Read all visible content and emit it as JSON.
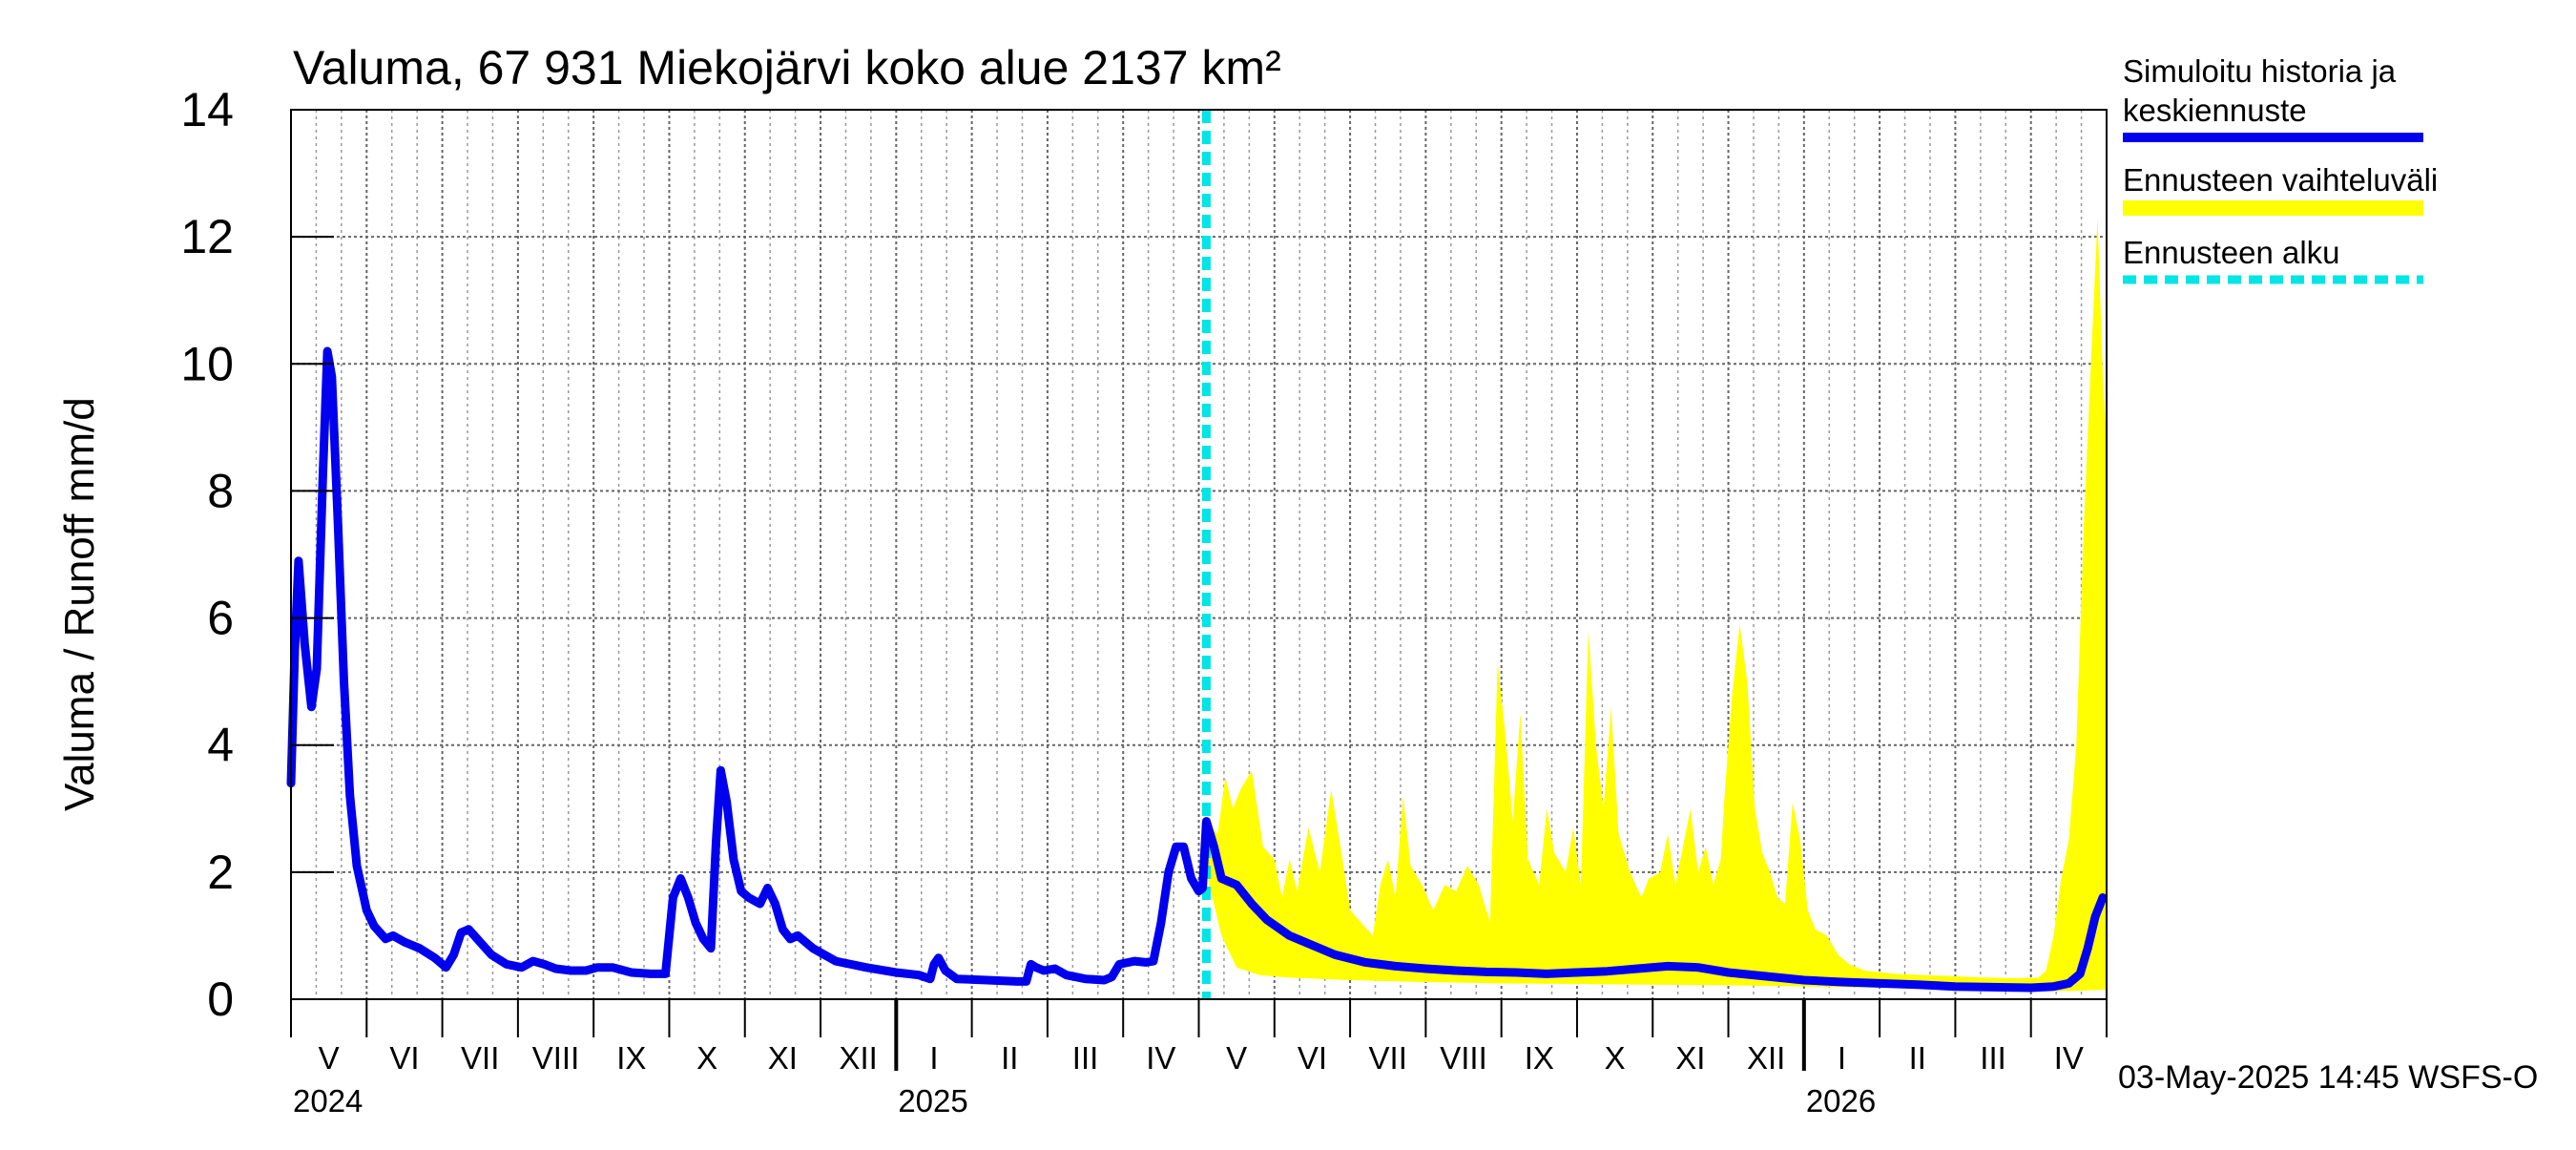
{
  "chart_data": {
    "type": "line",
    "title": "Valuma, 67 931 Miekojärvi koko alue 2137 km²",
    "ylabel": "Valuma / Runoff    mm/d",
    "ylim": [
      0,
      14
    ],
    "yticks": [
      0,
      2,
      4,
      6,
      8,
      10,
      12,
      14
    ],
    "xlim_months": [
      0,
      24
    ],
    "month_labels": [
      "V",
      "VI",
      "VII",
      "VIII",
      "IX",
      "X",
      "XI",
      "XII",
      "I",
      "II",
      "III",
      "IV",
      "V",
      "VI",
      "VII",
      "VIII",
      "IX",
      "X",
      "XI",
      "XII",
      "I",
      "II",
      "III",
      "IV"
    ],
    "year_labels": [
      {
        "label": "2024",
        "month": 0
      },
      {
        "label": "2025",
        "month": 8
      },
      {
        "label": "2026",
        "month": 20
      }
    ],
    "forecast_start_month": 12.1,
    "footer": "03-May-2025 14:45 WSFS-O",
    "legend": {
      "placement": "right",
      "items": [
        {
          "label_line1": "Simuloitu historia ja",
          "label_line2": "keskiennuste",
          "color": "#0000ee",
          "style": "line"
        },
        {
          "label_line1": "Ennusteen vaihteluväli",
          "label_line2": "",
          "color": "#ffff00",
          "style": "band"
        },
        {
          "label_line1": "Ennusteen alku",
          "label_line2": "",
          "color": "#00e5e5",
          "style": "dashed"
        }
      ]
    },
    "series": [
      {
        "name": "Simuloitu historia ja keskiennuste",
        "color": "#0000ee",
        "points": [
          [
            0,
            3.4
          ],
          [
            0.05,
            5.5
          ],
          [
            0.1,
            6.9
          ],
          [
            0.18,
            5.6
          ],
          [
            0.27,
            4.6
          ],
          [
            0.34,
            5.2
          ],
          [
            0.42,
            8.2
          ],
          [
            0.48,
            10.2
          ],
          [
            0.54,
            9.8
          ],
          [
            0.62,
            7.5
          ],
          [
            0.7,
            5.0
          ],
          [
            0.78,
            3.2
          ],
          [
            0.87,
            2.1
          ],
          [
            1.0,
            1.4
          ],
          [
            1.1,
            1.15
          ],
          [
            1.25,
            0.95
          ],
          [
            1.35,
            1.0
          ],
          [
            1.5,
            0.9
          ],
          [
            1.7,
            0.8
          ],
          [
            1.9,
            0.65
          ],
          [
            2.05,
            0.5
          ],
          [
            2.15,
            0.7
          ],
          [
            2.25,
            1.05
          ],
          [
            2.35,
            1.1
          ],
          [
            2.5,
            0.9
          ],
          [
            2.65,
            0.7
          ],
          [
            2.85,
            0.55
          ],
          [
            3.05,
            0.5
          ],
          [
            3.2,
            0.6
          ],
          [
            3.35,
            0.55
          ],
          [
            3.5,
            0.48
          ],
          [
            3.7,
            0.45
          ],
          [
            3.9,
            0.45
          ],
          [
            4.05,
            0.5
          ],
          [
            4.25,
            0.5
          ],
          [
            4.5,
            0.42
          ],
          [
            4.75,
            0.4
          ],
          [
            4.95,
            0.4
          ],
          [
            5.05,
            1.6
          ],
          [
            5.15,
            1.9
          ],
          [
            5.25,
            1.6
          ],
          [
            5.35,
            1.2
          ],
          [
            5.45,
            0.95
          ],
          [
            5.55,
            0.8
          ],
          [
            5.62,
            2.5
          ],
          [
            5.68,
            3.6
          ],
          [
            5.76,
            3.1
          ],
          [
            5.85,
            2.2
          ],
          [
            5.95,
            1.7
          ],
          [
            6.05,
            1.6
          ],
          [
            6.2,
            1.5
          ],
          [
            6.3,
            1.75
          ],
          [
            6.4,
            1.5
          ],
          [
            6.5,
            1.1
          ],
          [
            6.6,
            0.95
          ],
          [
            6.7,
            1.0
          ],
          [
            6.9,
            0.8
          ],
          [
            7.2,
            0.6
          ],
          [
            7.6,
            0.5
          ],
          [
            8.0,
            0.42
          ],
          [
            8.3,
            0.38
          ],
          [
            8.45,
            0.32
          ],
          [
            8.5,
            0.55
          ],
          [
            8.56,
            0.65
          ],
          [
            8.65,
            0.45
          ],
          [
            8.8,
            0.32
          ],
          [
            9.2,
            0.3
          ],
          [
            9.6,
            0.28
          ],
          [
            9.72,
            0.28
          ],
          [
            9.78,
            0.55
          ],
          [
            9.85,
            0.5
          ],
          [
            9.95,
            0.45
          ],
          [
            10.1,
            0.48
          ],
          [
            10.25,
            0.38
          ],
          [
            10.5,
            0.32
          ],
          [
            10.75,
            0.3
          ],
          [
            10.85,
            0.35
          ],
          [
            10.95,
            0.55
          ],
          [
            11.15,
            0.6
          ],
          [
            11.3,
            0.58
          ],
          [
            11.4,
            0.6
          ],
          [
            11.5,
            1.2
          ],
          [
            11.6,
            2.0
          ],
          [
            11.7,
            2.4
          ],
          [
            11.8,
            2.4
          ],
          [
            11.9,
            1.9
          ],
          [
            12.0,
            1.7
          ],
          [
            12.05,
            1.75
          ],
          [
            12.1,
            2.8
          ],
          [
            12.2,
            2.4
          ],
          [
            12.3,
            1.9
          ],
          [
            12.5,
            1.8
          ],
          [
            12.7,
            1.5
          ],
          [
            12.9,
            1.25
          ],
          [
            13.2,
            1.0
          ],
          [
            13.5,
            0.85
          ],
          [
            13.8,
            0.7
          ],
          [
            14.2,
            0.58
          ],
          [
            14.6,
            0.52
          ],
          [
            15.0,
            0.48
          ],
          [
            15.4,
            0.45
          ],
          [
            15.8,
            0.43
          ],
          [
            16.2,
            0.42
          ],
          [
            16.6,
            0.4
          ],
          [
            17.0,
            0.42
          ],
          [
            17.4,
            0.44
          ],
          [
            17.8,
            0.48
          ],
          [
            18.2,
            0.52
          ],
          [
            18.6,
            0.5
          ],
          [
            19.0,
            0.42
          ],
          [
            19.5,
            0.36
          ],
          [
            20.0,
            0.3
          ],
          [
            20.5,
            0.27
          ],
          [
            21.0,
            0.25
          ],
          [
            21.5,
            0.23
          ],
          [
            22.0,
            0.2
          ],
          [
            22.5,
            0.19
          ],
          [
            23.0,
            0.18
          ],
          [
            23.3,
            0.2
          ],
          [
            23.5,
            0.25
          ],
          [
            23.65,
            0.4
          ],
          [
            23.75,
            0.8
          ],
          [
            23.85,
            1.3
          ],
          [
            23.95,
            1.6
          ]
        ]
      }
    ],
    "band": {
      "name": "Ennusteen vaihteluväli",
      "color": "#ffff00",
      "upper": [
        [
          12.1,
          2.8
        ],
        [
          12.25,
          2.6
        ],
        [
          12.35,
          3.5
        ],
        [
          12.45,
          3.0
        ],
        [
          12.55,
          3.3
        ],
        [
          12.7,
          3.6
        ],
        [
          12.85,
          2.4
        ],
        [
          13.0,
          2.2
        ],
        [
          13.1,
          1.6
        ],
        [
          13.2,
          2.2
        ],
        [
          13.3,
          1.7
        ],
        [
          13.45,
          2.7
        ],
        [
          13.6,
          2.0
        ],
        [
          13.75,
          3.3
        ],
        [
          13.9,
          2.2
        ],
        [
          14.0,
          1.4
        ],
        [
          14.15,
          1.2
        ],
        [
          14.3,
          1.0
        ],
        [
          14.4,
          1.8
        ],
        [
          14.5,
          2.2
        ],
        [
          14.6,
          1.6
        ],
        [
          14.7,
          3.2
        ],
        [
          14.8,
          2.1
        ],
        [
          14.95,
          1.8
        ],
        [
          15.1,
          1.4
        ],
        [
          15.25,
          1.8
        ],
        [
          15.4,
          1.7
        ],
        [
          15.55,
          2.1
        ],
        [
          15.7,
          1.8
        ],
        [
          15.85,
          1.2
        ],
        [
          15.95,
          5.3
        ],
        [
          16.05,
          4.2
        ],
        [
          16.15,
          2.8
        ],
        [
          16.25,
          4.5
        ],
        [
          16.35,
          2.2
        ],
        [
          16.5,
          1.8
        ],
        [
          16.6,
          3.0
        ],
        [
          16.7,
          2.3
        ],
        [
          16.85,
          2.0
        ],
        [
          16.95,
          2.7
        ],
        [
          17.05,
          1.8
        ],
        [
          17.15,
          5.8
        ],
        [
          17.25,
          4.0
        ],
        [
          17.35,
          3.0
        ],
        [
          17.45,
          4.6
        ],
        [
          17.55,
          2.6
        ],
        [
          17.7,
          2.0
        ],
        [
          17.85,
          1.6
        ],
        [
          17.95,
          1.9
        ],
        [
          18.1,
          2.0
        ],
        [
          18.2,
          2.6
        ],
        [
          18.3,
          1.8
        ],
        [
          18.4,
          2.4
        ],
        [
          18.5,
          3.0
        ],
        [
          18.6,
          2.0
        ],
        [
          18.7,
          2.4
        ],
        [
          18.8,
          1.8
        ],
        [
          18.9,
          2.2
        ],
        [
          18.95,
          3.2
        ],
        [
          19.05,
          4.8
        ],
        [
          19.15,
          5.9
        ],
        [
          19.25,
          5.0
        ],
        [
          19.35,
          3.0
        ],
        [
          19.45,
          2.3
        ],
        [
          19.55,
          2.0
        ],
        [
          19.65,
          1.6
        ],
        [
          19.75,
          1.5
        ],
        [
          19.85,
          3.1
        ],
        [
          19.95,
          2.5
        ],
        [
          20.05,
          1.4
        ],
        [
          20.15,
          1.1
        ],
        [
          20.3,
          1.0
        ],
        [
          20.45,
          0.7
        ],
        [
          20.6,
          0.55
        ],
        [
          20.8,
          0.45
        ],
        [
          21.2,
          0.4
        ],
        [
          21.6,
          0.38
        ],
        [
          22.0,
          0.36
        ],
        [
          22.4,
          0.34
        ],
        [
          22.8,
          0.33
        ],
        [
          23.1,
          0.34
        ],
        [
          23.2,
          0.45
        ],
        [
          23.3,
          1.0
        ],
        [
          23.4,
          1.9
        ],
        [
          23.5,
          2.5
        ],
        [
          23.6,
          4.0
        ],
        [
          23.7,
          7.5
        ],
        [
          23.8,
          10.2
        ],
        [
          23.88,
          12.3
        ],
        [
          23.95,
          9.8
        ],
        [
          24.0,
          8.8
        ]
      ],
      "lower": [
        [
          12.1,
          2.0
        ],
        [
          12.3,
          1.0
        ],
        [
          12.5,
          0.5
        ],
        [
          12.8,
          0.38
        ],
        [
          13.2,
          0.34
        ],
        [
          14.0,
          0.3
        ],
        [
          15.0,
          0.27
        ],
        [
          16.0,
          0.25
        ],
        [
          17.0,
          0.24
        ],
        [
          18.0,
          0.23
        ],
        [
          19.0,
          0.22
        ],
        [
          20.0,
          0.2
        ],
        [
          21.0,
          0.18
        ],
        [
          22.0,
          0.15
        ],
        [
          23.0,
          0.13
        ],
        [
          23.5,
          0.13
        ],
        [
          24.0,
          0.15
        ]
      ]
    }
  }
}
